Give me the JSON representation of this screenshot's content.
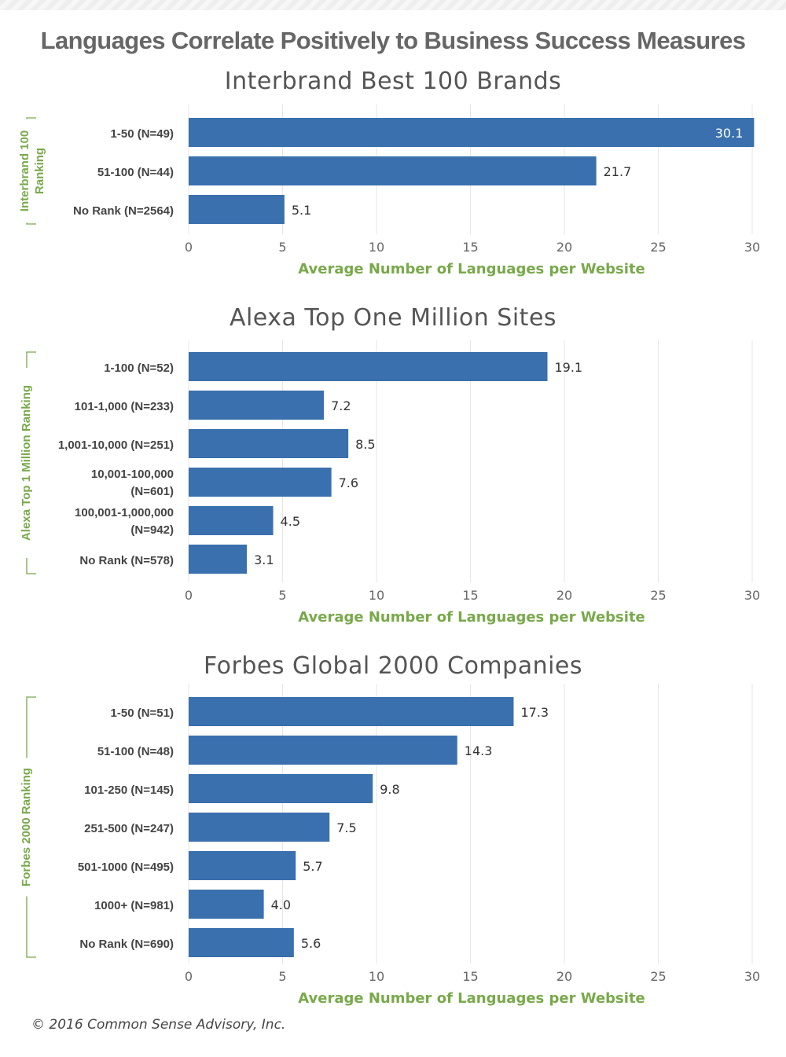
{
  "title": "Languages Correlate Positively to Business Success Measures",
  "footer": "© 2016 Common Sense Advisory, Inc.",
  "colors": {
    "bar": "#3a70ad",
    "accent": "#78a94a",
    "grid": "#e6e6e6",
    "text": "#444444"
  },
  "chart_data": [
    {
      "type": "bar",
      "orientation": "horizontal",
      "title": "Interbrand Best 100 Brands",
      "xlabel": "Average Number of Languages per Website",
      "ylabel": "Interbrand 100 Ranking",
      "xlim": [
        0,
        30
      ],
      "xticks": [
        0,
        5,
        10,
        15,
        20,
        25,
        30
      ],
      "grid": true,
      "categories": [
        "1-50 (N=49)",
        "51-100 (N=44)",
        "No Rank (N=2564)"
      ],
      "values": [
        30.1,
        21.7,
        5.1
      ]
    },
    {
      "type": "bar",
      "orientation": "horizontal",
      "title": "Alexa Top One Million Sites",
      "xlabel": "Average Number of Languages per Website",
      "ylabel": "Alexa Top 1 Million Ranking",
      "xlim": [
        0,
        30
      ],
      "xticks": [
        0,
        5,
        10,
        15,
        20,
        25,
        30
      ],
      "grid": true,
      "categories": [
        "1-100 (N=52)",
        "101-1,000 (N=233)",
        "1,001-10,000 (N=251)",
        "10,001-100,000 (N=601)",
        "100,001-1,000,000 (N=942)",
        "No Rank (N=578)"
      ],
      "values": [
        19.1,
        7.2,
        8.5,
        7.6,
        4.5,
        3.1
      ]
    },
    {
      "type": "bar",
      "orientation": "horizontal",
      "title": "Forbes Global 2000 Companies",
      "xlabel": "Average Number of Languages per Website",
      "ylabel": "Forbes 2000 Ranking",
      "xlim": [
        0,
        30
      ],
      "xticks": [
        0,
        5,
        10,
        15,
        20,
        25,
        30
      ],
      "grid": true,
      "categories": [
        "1-50 (N=51)",
        "51-100 (N=48)",
        "101-250 (N=145)",
        "251-500 (N=247)",
        "501-1000 (N=495)",
        "1000+ (N=981)",
        "No Rank (N=690)"
      ],
      "values": [
        17.3,
        14.3,
        9.8,
        7.5,
        5.7,
        4.0,
        5.6
      ]
    }
  ]
}
